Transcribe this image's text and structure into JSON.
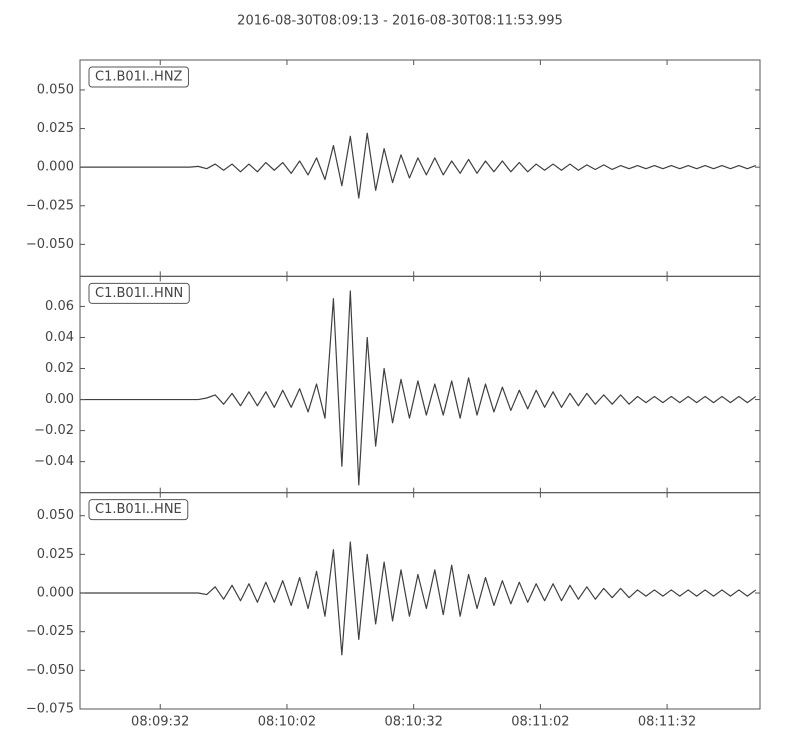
{
  "title": "2016-08-30T08:09:13  -  2016-08-30T08:11:53.995",
  "chart_data": [
    {
      "type": "line",
      "label": "C1.B01I..HNZ",
      "color": "#404040",
      "x": [
        "08:09:13",
        "08:09:15",
        "08:09:17",
        "08:09:19",
        "08:09:21",
        "08:09:23",
        "08:09:25",
        "08:09:27",
        "08:09:29",
        "08:09:31",
        "08:09:33",
        "08:09:35",
        "08:09:37",
        "08:09:39",
        "08:09:41",
        "08:09:43",
        "08:09:45",
        "08:09:47",
        "08:09:49",
        "08:09:51",
        "08:09:53",
        "08:09:55",
        "08:09:57",
        "08:09:59",
        "08:10:01",
        "08:10:03",
        "08:10:05",
        "08:10:07",
        "08:10:09",
        "08:10:11",
        "08:10:13",
        "08:10:15",
        "08:10:17",
        "08:10:19",
        "08:10:21",
        "08:10:23",
        "08:10:25",
        "08:10:27",
        "08:10:29",
        "08:10:31",
        "08:10:33",
        "08:10:35",
        "08:10:37",
        "08:10:39",
        "08:10:41",
        "08:10:43",
        "08:10:45",
        "08:10:47",
        "08:10:49",
        "08:10:51",
        "08:10:53",
        "08:10:55",
        "08:10:57",
        "08:10:59",
        "08:11:01",
        "08:11:03",
        "08:11:05",
        "08:11:07",
        "08:11:09",
        "08:11:11",
        "08:11:13",
        "08:11:15",
        "08:11:17",
        "08:11:19",
        "08:11:21",
        "08:11:23",
        "08:11:25",
        "08:11:27",
        "08:11:29",
        "08:11:31",
        "08:11:33",
        "08:11:35",
        "08:11:37",
        "08:11:39",
        "08:11:41",
        "08:11:43",
        "08:11:45",
        "08:11:47",
        "08:11:49",
        "08:11:51",
        "08:11:53"
      ],
      "values": [
        0,
        0,
        0,
        0,
        0,
        0,
        0,
        0,
        0,
        0,
        0,
        0,
        0,
        0,
        0.0005,
        -0.001,
        0.002,
        -0.002,
        0.002,
        -0.003,
        0.002,
        -0.003,
        0.003,
        -0.002,
        0.003,
        -0.004,
        0.004,
        -0.005,
        0.006,
        -0.008,
        0.014,
        -0.012,
        0.02,
        -0.02,
        0.022,
        -0.015,
        0.012,
        -0.01,
        0.008,
        -0.007,
        0.006,
        -0.005,
        0.006,
        -0.005,
        0.004,
        -0.004,
        0.005,
        -0.004,
        0.004,
        -0.003,
        0.004,
        -0.003,
        0.003,
        -0.003,
        0.002,
        -0.002,
        0.002,
        -0.002,
        0.002,
        -0.002,
        0.0015,
        -0.0015,
        0.0015,
        -0.0015,
        0.001,
        -0.001,
        0.001,
        -0.001,
        0.001,
        -0.001,
        0.001,
        -0.001,
        0.001,
        -0.001,
        0.001,
        -0.001,
        0.001,
        -0.001,
        0.001,
        -0.001,
        0.001
      ],
      "xlim": [
        "08:09:13",
        "08:11:53.995"
      ],
      "xticks": [
        "08:09:32",
        "08:10:02",
        "08:10:32",
        "08:11:02",
        "08:11:32"
      ],
      "ylim": [
        -0.0707,
        0.0694
      ],
      "yticks": [
        {
          "value": 0.05,
          "label": "0.050"
        },
        0.025,
        {
          "value": 0,
          "label": "0.000"
        },
        {
          "value": -0.025,
          "label": "−0.025"
        },
        {
          "value": -0.05,
          "label": "−0.050"
        }
      ]
    },
    {
      "type": "line",
      "label": "C1.B01I..HNN",
      "color": "#404040",
      "x": [
        "08:09:13",
        "08:09:15",
        "08:09:17",
        "08:09:19",
        "08:09:21",
        "08:09:23",
        "08:09:25",
        "08:09:27",
        "08:09:29",
        "08:09:31",
        "08:09:33",
        "08:09:35",
        "08:09:37",
        "08:09:39",
        "08:09:41",
        "08:09:43",
        "08:09:45",
        "08:09:47",
        "08:09:49",
        "08:09:51",
        "08:09:53",
        "08:09:55",
        "08:09:57",
        "08:09:59",
        "08:10:01",
        "08:10:03",
        "08:10:05",
        "08:10:07",
        "08:10:09",
        "08:10:11",
        "08:10:13",
        "08:10:15",
        "08:10:17",
        "08:10:19",
        "08:10:21",
        "08:10:23",
        "08:10:25",
        "08:10:27",
        "08:10:29",
        "08:10:31",
        "08:10:33",
        "08:10:35",
        "08:10:37",
        "08:10:39",
        "08:10:41",
        "08:10:43",
        "08:10:45",
        "08:10:47",
        "08:10:49",
        "08:10:51",
        "08:10:53",
        "08:10:55",
        "08:10:57",
        "08:10:59",
        "08:11:01",
        "08:11:03",
        "08:11:05",
        "08:11:07",
        "08:11:09",
        "08:11:11",
        "08:11:13",
        "08:11:15",
        "08:11:17",
        "08:11:19",
        "08:11:21",
        "08:11:23",
        "08:11:25",
        "08:11:27",
        "08:11:29",
        "08:11:31",
        "08:11:33",
        "08:11:35",
        "08:11:37",
        "08:11:39",
        "08:11:41",
        "08:11:43",
        "08:11:45",
        "08:11:47",
        "08:11:49",
        "08:11:51",
        "08:11:53"
      ],
      "values": [
        0,
        0,
        0,
        0,
        0,
        0,
        0,
        0,
        0,
        0,
        0,
        0,
        0,
        0,
        0,
        0.001,
        0.003,
        -0.003,
        0.004,
        -0.004,
        0.005,
        -0.004,
        0.005,
        -0.005,
        0.006,
        -0.005,
        0.007,
        -0.008,
        0.01,
        -0.012,
        0.065,
        -0.043,
        0.07,
        -0.055,
        0.04,
        -0.03,
        0.02,
        -0.015,
        0.013,
        -0.012,
        0.012,
        -0.01,
        0.01,
        -0.01,
        0.012,
        -0.012,
        0.014,
        -0.01,
        0.01,
        -0.008,
        0.008,
        -0.007,
        0.006,
        -0.006,
        0.006,
        -0.005,
        0.005,
        -0.005,
        0.004,
        -0.004,
        0.004,
        -0.003,
        0.003,
        -0.003,
        0.003,
        -0.003,
        0.002,
        -0.002,
        0.002,
        -0.002,
        0.002,
        -0.002,
        0.002,
        -0.002,
        0.002,
        -0.002,
        0.002,
        -0.002,
        0.002,
        -0.002,
        0.002
      ],
      "xlim": [
        "08:09:13",
        "08:11:53.995"
      ],
      "xticks": [
        "08:09:32",
        "08:10:02",
        "08:10:32",
        "08:11:02",
        "08:11:32"
      ],
      "ylim": [
        -0.06,
        0.0794
      ],
      "yticks": [
        0.06,
        0.04,
        0.02,
        {
          "value": 0,
          "label": "0.00"
        },
        {
          "value": -0.02,
          "label": "−0.02"
        },
        {
          "value": -0.04,
          "label": "−0.04"
        }
      ]
    },
    {
      "type": "line",
      "label": "C1.B01I..HNE",
      "color": "#404040",
      "x": [
        "08:09:13",
        "08:09:15",
        "08:09:17",
        "08:09:19",
        "08:09:21",
        "08:09:23",
        "08:09:25",
        "08:09:27",
        "08:09:29",
        "08:09:31",
        "08:09:33",
        "08:09:35",
        "08:09:37",
        "08:09:39",
        "08:09:41",
        "08:09:43",
        "08:09:45",
        "08:09:47",
        "08:09:49",
        "08:09:51",
        "08:09:53",
        "08:09:55",
        "08:09:57",
        "08:09:59",
        "08:10:01",
        "08:10:03",
        "08:10:05",
        "08:10:07",
        "08:10:09",
        "08:10:11",
        "08:10:13",
        "08:10:15",
        "08:10:17",
        "08:10:19",
        "08:10:21",
        "08:10:23",
        "08:10:25",
        "08:10:27",
        "08:10:29",
        "08:10:31",
        "08:10:33",
        "08:10:35",
        "08:10:37",
        "08:10:39",
        "08:10:41",
        "08:10:43",
        "08:10:45",
        "08:10:47",
        "08:10:49",
        "08:10:51",
        "08:10:53",
        "08:10:55",
        "08:10:57",
        "08:10:59",
        "08:11:01",
        "08:11:03",
        "08:11:05",
        "08:11:07",
        "08:11:09",
        "08:11:11",
        "08:11:13",
        "08:11:15",
        "08:11:17",
        "08:11:19",
        "08:11:21",
        "08:11:23",
        "08:11:25",
        "08:11:27",
        "08:11:29",
        "08:11:31",
        "08:11:33",
        "08:11:35",
        "08:11:37",
        "08:11:39",
        "08:11:41",
        "08:11:43",
        "08:11:45",
        "08:11:47",
        "08:11:49",
        "08:11:51",
        "08:11:53"
      ],
      "values": [
        0,
        0,
        0,
        0,
        0,
        0,
        0,
        0,
        0,
        0,
        0,
        0,
        0,
        0,
        0,
        -0.001,
        0.004,
        -0.004,
        0.005,
        -0.005,
        0.006,
        -0.006,
        0.007,
        -0.006,
        0.008,
        -0.008,
        0.01,
        -0.01,
        0.014,
        -0.015,
        0.028,
        -0.04,
        0.033,
        -0.03,
        0.025,
        -0.02,
        0.02,
        -0.018,
        0.015,
        -0.015,
        0.012,
        -0.01,
        0.015,
        -0.014,
        0.018,
        -0.015,
        0.012,
        -0.01,
        0.01,
        -0.008,
        0.008,
        -0.007,
        0.007,
        -0.006,
        0.006,
        -0.005,
        0.006,
        -0.005,
        0.005,
        -0.004,
        0.004,
        -0.004,
        0.003,
        -0.003,
        0.003,
        -0.003,
        0.002,
        -0.002,
        0.002,
        -0.002,
        0.002,
        -0.002,
        0.002,
        -0.002,
        0.002,
        -0.002,
        0.002,
        -0.002,
        0.002,
        -0.002,
        0.002
      ],
      "xlim": [
        "08:09:13",
        "08:11:53.995"
      ],
      "xticks": [
        "08:09:32",
        "08:10:02",
        "08:10:32",
        "08:11:02",
        "08:11:32"
      ],
      "ylim": [
        -0.075,
        0.0649
      ],
      "yticks": [
        {
          "value": 0.05,
          "label": "0.050"
        },
        0.025,
        {
          "value": 0,
          "label": "0.000"
        },
        {
          "value": -0.025,
          "label": "−0.025"
        },
        {
          "value": -0.05,
          "label": "−0.050"
        },
        {
          "value": -0.075,
          "label": "−0.075"
        }
      ]
    }
  ]
}
